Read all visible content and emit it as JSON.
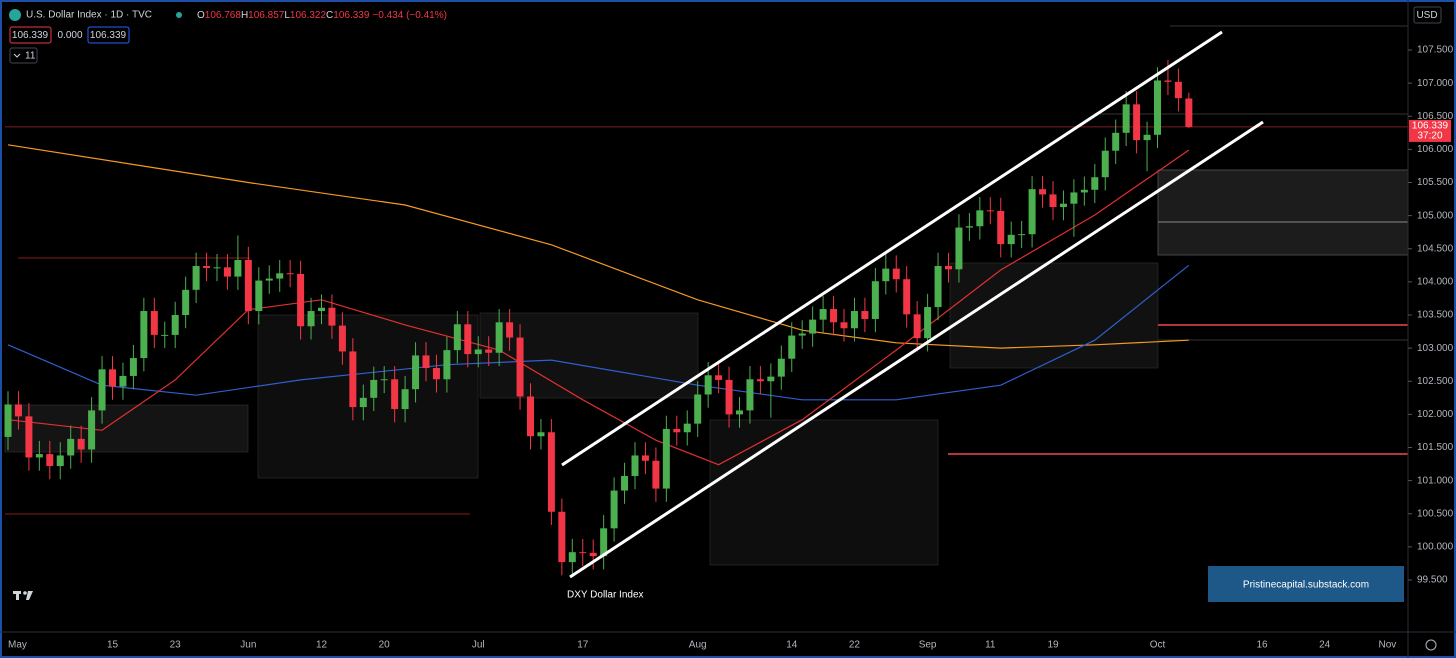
{
  "ui": {
    "title": "U.S. Dollar Index · 1D · TVC",
    "ohlc": [
      {
        "k": "O",
        "v": "106.768"
      },
      {
        "k": "H",
        "v": "106.857"
      },
      {
        "k": "L",
        "v": "106.322"
      },
      {
        "k": "C",
        "v": "106.339"
      }
    ],
    "change": "−0.434 (−0.41%)",
    "bid": "106.339",
    "spread": "0.000",
    "ask": "106.339",
    "indicators": "11",
    "currency": "USD",
    "last_price": "106.339",
    "countdown": "37:20",
    "watermark": "DXY Dollar Index",
    "credit": "Pristinecapital.substack.com"
  },
  "chart_data": {
    "type": "candlestick",
    "up_color": "#4caf50",
    "down_color": "#f23645",
    "categories": [
      "May",
      null,
      null,
      null,
      null,
      null,
      null,
      null,
      null,
      null,
      "15",
      null,
      null,
      null,
      null,
      null,
      "23",
      null,
      null,
      null,
      null,
      null,
      null,
      "Jun",
      null,
      null,
      null,
      null,
      null,
      null,
      "12",
      null,
      null,
      null,
      null,
      null,
      "20",
      null,
      null,
      null,
      null,
      null,
      null,
      null,
      null,
      "Jul",
      null,
      null,
      null,
      null,
      null,
      null,
      null,
      null,
      null,
      "17",
      null,
      null,
      null,
      null,
      null,
      null,
      null,
      null,
      null,
      null,
      "Aug",
      null,
      null,
      null,
      null,
      null,
      null,
      null,
      null,
      "14",
      null,
      null,
      null,
      null,
      null,
      "22",
      null,
      null,
      null,
      null,
      null,
      null,
      "Sep",
      null,
      null,
      null,
      null,
      null,
      "11",
      null,
      null,
      null,
      null,
      null,
      "19",
      null,
      null,
      null,
      null,
      null,
      null,
      null,
      null,
      null,
      "Oct",
      null,
      null,
      null,
      null,
      null,
      null,
      null,
      null,
      null,
      "16",
      null,
      null,
      null,
      null,
      null,
      "24",
      null,
      null,
      null,
      null,
      null,
      "Nov"
    ],
    "open": [
      101.66,
      102.15,
      101.97,
      101.35,
      101.4,
      101.22,
      101.38,
      101.63,
      101.47,
      102.06,
      102.68,
      102.42,
      102.58,
      102.85,
      103.56,
      103.2,
      103.2,
      103.5,
      103.88,
      104.24,
      104.21,
      104.22,
      104.08,
      104.33,
      103.56,
      104.02,
      104.05,
      104.13,
      104.12,
      103.33,
      103.56,
      103.61,
      103.34,
      102.95,
      102.11,
      102.25,
      102.52,
      102.53,
      102.08,
      102.38,
      102.89,
      102.7,
      102.53,
      102.97,
      103.36,
      102.91,
      102.98,
      102.93,
      103.39,
      103.16,
      102.27,
      101.67,
      101.73,
      100.53,
      99.77,
      99.92,
      99.91,
      99.86,
      100.28,
      100.85,
      101.07,
      101.38,
      101.3,
      100.88,
      101.78,
      101.73,
      101.86,
      102.3,
      102.59,
      102.52,
      102.0,
      102.06,
      102.53,
      102.5,
      102.57,
      102.84,
      103.19,
      103.22,
      103.43,
      103.59,
      103.39,
      103.3,
      103.56,
      103.44,
      104.01,
      104.2,
      104.04,
      103.51,
      103.15,
      103.62,
      104.24,
      104.19,
      104.82,
      104.84,
      105.08,
      105.07,
      104.57,
      104.71,
      104.72,
      105.4,
      105.32,
      105.13,
      105.18,
      105.35,
      105.39,
      105.58,
      105.98,
      106.25,
      106.68,
      106.14,
      106.22,
      107.04,
      107.02,
      106.768,
      null,
      null,
      null,
      null,
      null,
      null,
      null,
      null,
      null,
      null,
      null,
      null,
      null,
      null,
      null,
      null,
      null,
      null,
      null
    ],
    "high": [
      102.35,
      102.35,
      102.17,
      101.6,
      101.6,
      101.58,
      101.83,
      101.83,
      102.26,
      102.88,
      102.88,
      102.78,
      103.05,
      103.76,
      103.76,
      103.4,
      103.7,
      104.08,
      104.44,
      104.44,
      104.42,
      104.42,
      104.7,
      104.53,
      104.22,
      104.25,
      104.33,
      104.33,
      104.32,
      103.76,
      103.81,
      103.81,
      103.54,
      103.15,
      102.45,
      102.72,
      102.73,
      102.73,
      102.58,
      103.09,
      103.09,
      102.9,
      103.17,
      103.56,
      103.56,
      103.18,
      103.18,
      103.59,
      103.59,
      103.36,
      102.47,
      101.93,
      101.93,
      100.73,
      100.12,
      100.12,
      100.11,
      100.48,
      101.05,
      101.27,
      101.58,
      101.58,
      101.5,
      101.98,
      101.98,
      102.06,
      102.5,
      102.79,
      102.79,
      102.72,
      102.26,
      102.73,
      102.73,
      102.77,
      103.04,
      103.39,
      103.42,
      103.63,
      103.79,
      103.79,
      103.59,
      103.76,
      103.76,
      104.21,
      104.45,
      104.4,
      104.24,
      103.71,
      103.82,
      104.44,
      104.44,
      105.02,
      105.04,
      105.28,
      105.28,
      105.27,
      104.91,
      104.92,
      105.6,
      105.6,
      105.52,
      105.38,
      105.55,
      105.59,
      105.78,
      106.18,
      106.45,
      106.88,
      106.88,
      106.42,
      107.24,
      107.35,
      107.22,
      106.857,
      null,
      null,
      null,
      null,
      null,
      null,
      null,
      null,
      null,
      null,
      null,
      null,
      null,
      null,
      null,
      null,
      null,
      null,
      null
    ],
    "low": [
      101.46,
      101.77,
      101.15,
      101.15,
      101.02,
      101.02,
      101.18,
      101.27,
      101.27,
      101.86,
      102.22,
      102.22,
      102.38,
      102.65,
      103.0,
      103.0,
      103.0,
      103.3,
      103.68,
      104.01,
      104.01,
      103.88,
      103.88,
      103.36,
      103.36,
      103.82,
      103.85,
      103.92,
      103.13,
      103.13,
      103.36,
      103.14,
      102.75,
      101.91,
      101.91,
      102.05,
      102.32,
      101.88,
      101.88,
      102.18,
      102.5,
      102.33,
      102.33,
      102.77,
      102.71,
      102.71,
      102.73,
      102.73,
      102.96,
      102.07,
      101.47,
      101.47,
      100.33,
      99.57,
      99.57,
      99.71,
      99.66,
      99.66,
      100.08,
      100.65,
      100.87,
      101.1,
      100.68,
      100.68,
      101.53,
      101.53,
      101.66,
      102.1,
      102.32,
      101.8,
      101.8,
      101.86,
      102.3,
      101.95,
      102.37,
      102.64,
      102.99,
      103.02,
      103.23,
      103.19,
      103.1,
      103.1,
      103.24,
      103.24,
      103.81,
      103.84,
      103.31,
      102.95,
      102.95,
      103.42,
      103.99,
      103.99,
      104.62,
      104.64,
      104.87,
      104.37,
      104.37,
      104.51,
      104.52,
      105.12,
      104.93,
      104.93,
      104.68,
      105.15,
      105.19,
      105.38,
      105.78,
      106.05,
      105.94,
      105.67,
      106.02,
      106.82,
      106.573,
      106.322,
      null,
      null,
      null,
      null,
      null,
      null,
      null,
      null,
      null,
      null,
      null,
      null,
      null,
      null,
      null,
      null,
      null,
      null,
      null
    ],
    "close": [
      102.15,
      101.97,
      101.35,
      101.4,
      101.22,
      101.38,
      101.63,
      101.47,
      102.06,
      102.68,
      102.42,
      102.58,
      102.85,
      103.56,
      103.2,
      103.2,
      103.5,
      103.88,
      104.24,
      104.21,
      104.22,
      104.08,
      104.33,
      103.56,
      104.02,
      104.05,
      104.13,
      104.12,
      103.33,
      103.56,
      103.61,
      103.34,
      102.95,
      102.11,
      102.25,
      102.52,
      102.53,
      102.08,
      102.38,
      102.89,
      102.7,
      102.53,
      102.97,
      103.36,
      102.91,
      102.98,
      102.93,
      103.39,
      103.16,
      102.27,
      101.67,
      101.73,
      100.53,
      99.77,
      99.92,
      99.91,
      99.86,
      100.28,
      100.85,
      101.07,
      101.38,
      101.3,
      100.88,
      101.78,
      101.73,
      101.86,
      102.3,
      102.59,
      102.52,
      102.0,
      102.06,
      102.53,
      102.5,
      102.57,
      102.84,
      103.19,
      103.22,
      103.43,
      103.59,
      103.39,
      103.3,
      103.56,
      103.44,
      104.01,
      104.2,
      104.04,
      103.51,
      103.15,
      103.62,
      104.24,
      104.19,
      104.82,
      104.84,
      105.08,
      105.07,
      104.57,
      104.71,
      104.72,
      105.4,
      105.32,
      105.13,
      105.18,
      105.35,
      105.39,
      105.58,
      105.98,
      106.25,
      106.68,
      106.14,
      106.22,
      107.04,
      107.02,
      106.773,
      106.339,
      null,
      null,
      null,
      null,
      null,
      null,
      null,
      null,
      null,
      null,
      null,
      null,
      null,
      null,
      null,
      null,
      null,
      null,
      null
    ],
    "overlays": [
      {
        "color": "#f59a23",
        "x": [
          0,
          23,
          38,
          52,
          66,
          76,
          85,
          95,
          104,
          113
        ],
        "values": [
          106.07,
          105.5,
          105.16,
          104.56,
          103.73,
          103.27,
          103.08,
          103.0,
          103.05,
          103.12
        ]
      },
      {
        "color": "#2f5fd0",
        "x": [
          0,
          9,
          18,
          28,
          42,
          52,
          66,
          76,
          85,
          95,
          104,
          113
        ],
        "values": [
          103.05,
          102.44,
          102.29,
          102.52,
          102.75,
          102.82,
          102.44,
          102.22,
          102.22,
          102.44,
          103.12,
          104.25
        ]
      },
      {
        "color": "#e03030",
        "x": [
          0,
          9,
          16,
          23,
          30,
          38,
          47,
          55,
          62,
          68,
          76,
          85,
          95,
          104,
          113
        ],
        "values": [
          101.92,
          101.76,
          102.52,
          103.58,
          103.73,
          103.35,
          102.97,
          102.22,
          101.61,
          101.24,
          101.92,
          102.97,
          104.18,
          105.01,
          105.99
        ]
      }
    ],
    "ylim": [
      98.715,
      108.255
    ],
    "yticks": [
      {
        "value": 99.5,
        "label": "99.500"
      },
      {
        "value": 100,
        "label": "100.000"
      },
      {
        "value": 100.5,
        "label": "100.500"
      },
      {
        "value": 101,
        "label": "101.000"
      },
      {
        "value": 101.5,
        "label": "101.500"
      },
      {
        "value": 102,
        "label": "102.000"
      },
      {
        "value": 102.5,
        "label": "102.500"
      },
      {
        "value": 103,
        "label": "103.000"
      },
      {
        "value": 103.5,
        "label": "103.500"
      },
      {
        "value": 104,
        "label": "104.000"
      },
      {
        "value": 104.5,
        "label": "104.500"
      },
      {
        "value": 105,
        "label": "105.000"
      },
      {
        "value": 105.5,
        "label": "105.500"
      },
      {
        "value": 106,
        "label": "106.000"
      },
      {
        "value": 106.5,
        "label": "106.500"
      },
      {
        "value": 107,
        "label": "107.000"
      },
      {
        "value": 107.5,
        "label": "107.500"
      }
    ]
  }
}
